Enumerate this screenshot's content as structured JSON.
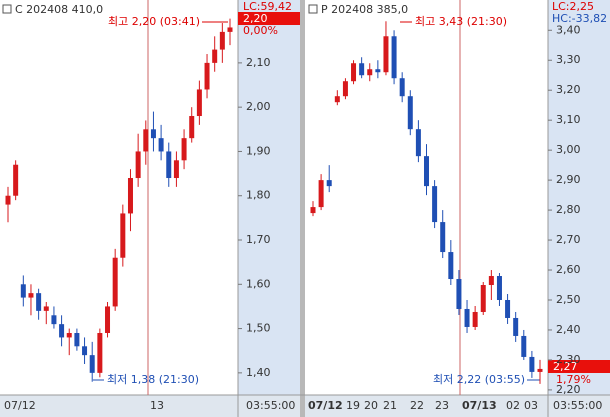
{
  "chart_data": [
    {
      "type": "candlestick",
      "title": "C 202408 410,0",
      "up_color": "#d7191c",
      "down_color": "#1f4fb4",
      "ylim": [
        1.35,
        2.242
      ],
      "yticks": [
        {
          "value": 1.4,
          "label": "1,40"
        },
        {
          "value": 1.5,
          "label": "1,50"
        },
        {
          "value": 1.6,
          "label": "1,60"
        },
        {
          "value": 1.7,
          "label": "1,70"
        },
        {
          "value": 1.8,
          "label": "1,80"
        },
        {
          "value": 1.9,
          "label": "1,90"
        },
        {
          "value": 2.0,
          "label": "2,00"
        },
        {
          "value": 2.1,
          "label": "2,10"
        }
      ],
      "x_labels": [
        "07/12",
        "13",
        "03:55:00"
      ],
      "annotations": [
        "LC:59,42",
        "2,20",
        "0,00%",
        "최고 2,20 (03:41)",
        "최저 1,38 (21:30)"
      ],
      "candles": [
        [
          1.78,
          1.82,
          1.74,
          1.8
        ],
        [
          1.8,
          1.88,
          1.79,
          1.87
        ],
        [
          1.6,
          1.62,
          1.55,
          1.57
        ],
        [
          1.57,
          1.6,
          1.53,
          1.58
        ],
        [
          1.58,
          1.59,
          1.52,
          1.54
        ],
        [
          1.54,
          1.56,
          1.51,
          1.55
        ],
        [
          1.53,
          1.55,
          1.5,
          1.51
        ],
        [
          1.51,
          1.53,
          1.46,
          1.48
        ],
        [
          1.48,
          1.5,
          1.44,
          1.49
        ],
        [
          1.49,
          1.5,
          1.45,
          1.46
        ],
        [
          1.46,
          1.48,
          1.42,
          1.44
        ],
        [
          1.44,
          1.47,
          1.38,
          1.4
        ],
        [
          1.4,
          1.5,
          1.39,
          1.49
        ],
        [
          1.49,
          1.56,
          1.48,
          1.55
        ],
        [
          1.55,
          1.68,
          1.54,
          1.66
        ],
        [
          1.66,
          1.78,
          1.64,
          1.76
        ],
        [
          1.76,
          1.86,
          1.72,
          1.84
        ],
        [
          1.84,
          1.94,
          1.82,
          1.9
        ],
        [
          1.9,
          1.97,
          1.87,
          1.95
        ],
        [
          1.95,
          1.99,
          1.9,
          1.93
        ],
        [
          1.93,
          1.96,
          1.88,
          1.9
        ],
        [
          1.9,
          1.92,
          1.82,
          1.84
        ],
        [
          1.84,
          1.9,
          1.82,
          1.88
        ],
        [
          1.88,
          1.95,
          1.86,
          1.93
        ],
        [
          1.93,
          2.0,
          1.92,
          1.98
        ],
        [
          1.98,
          2.06,
          1.96,
          2.04
        ],
        [
          2.04,
          2.12,
          2.02,
          2.1
        ],
        [
          2.1,
          2.16,
          2.08,
          2.13
        ],
        [
          2.13,
          2.19,
          2.1,
          2.17
        ],
        [
          2.17,
          2.2,
          2.14,
          2.18
        ]
      ]
    },
    {
      "type": "candlestick",
      "title": "P 202408 385,0",
      "up_color": "#d7191c",
      "down_color": "#1f4fb4",
      "ylim": [
        2.183,
        3.501
      ],
      "yticks": [
        {
          "value": 2.2,
          "label": "2,20"
        },
        {
          "value": 2.3,
          "label": "2,30"
        },
        {
          "value": 2.4,
          "label": "2,40"
        },
        {
          "value": 2.5,
          "label": "2,50"
        },
        {
          "value": 2.6,
          "label": "2,60"
        },
        {
          "value": 2.7,
          "label": "2,70"
        },
        {
          "value": 2.8,
          "label": "2,80"
        },
        {
          "value": 2.9,
          "label": "2,90"
        },
        {
          "value": 3.0,
          "label": "3,00"
        },
        {
          "value": 3.1,
          "label": "3,10"
        },
        {
          "value": 3.2,
          "label": "3,20"
        },
        {
          "value": 3.3,
          "label": "3,30"
        },
        {
          "value": 3.4,
          "label": "3,40"
        }
      ],
      "x_labels": [
        "07/12",
        "19",
        "20",
        "21",
        "22",
        "23",
        "07/13",
        "02",
        "03",
        "03:55:00"
      ],
      "annotations": [
        "LC:2,25",
        "HC:-33,82",
        "2,27",
        "1,79%",
        "최고 3,43 (21:30)",
        "최저 2,22 (03:55)"
      ],
      "candles": [
        [
          2.79,
          2.83,
          2.78,
          2.81
        ],
        [
          2.81,
          2.92,
          2.8,
          2.9
        ],
        [
          2.9,
          2.95,
          2.86,
          2.88
        ],
        [
          3.16,
          3.2,
          3.15,
          3.18
        ],
        [
          3.18,
          3.24,
          3.17,
          3.23
        ],
        [
          3.23,
          3.3,
          3.22,
          3.29
        ],
        [
          3.29,
          3.31,
          3.24,
          3.25
        ],
        [
          3.25,
          3.29,
          3.23,
          3.27
        ],
        [
          3.27,
          3.3,
          3.24,
          3.26
        ],
        [
          3.26,
          3.43,
          3.25,
          3.38
        ],
        [
          3.38,
          3.4,
          3.22,
          3.24
        ],
        [
          3.24,
          3.26,
          3.16,
          3.18
        ],
        [
          3.18,
          3.2,
          3.05,
          3.07
        ],
        [
          3.07,
          3.1,
          2.96,
          2.98
        ],
        [
          2.98,
          3.02,
          2.85,
          2.88
        ],
        [
          2.88,
          2.9,
          2.74,
          2.76
        ],
        [
          2.76,
          2.8,
          2.64,
          2.66
        ],
        [
          2.66,
          2.7,
          2.55,
          2.57
        ],
        [
          2.57,
          2.6,
          2.45,
          2.47
        ],
        [
          2.47,
          2.5,
          2.39,
          2.41
        ],
        [
          2.41,
          2.48,
          2.4,
          2.46
        ],
        [
          2.46,
          2.56,
          2.45,
          2.55
        ],
        [
          2.55,
          2.6,
          2.5,
          2.58
        ],
        [
          2.58,
          2.59,
          2.48,
          2.5
        ],
        [
          2.5,
          2.52,
          2.42,
          2.44
        ],
        [
          2.44,
          2.46,
          2.36,
          2.38
        ],
        [
          2.38,
          2.4,
          2.3,
          2.31
        ],
        [
          2.31,
          2.33,
          2.24,
          2.26
        ],
        [
          2.26,
          2.3,
          2.22,
          2.27
        ]
      ]
    }
  ]
}
